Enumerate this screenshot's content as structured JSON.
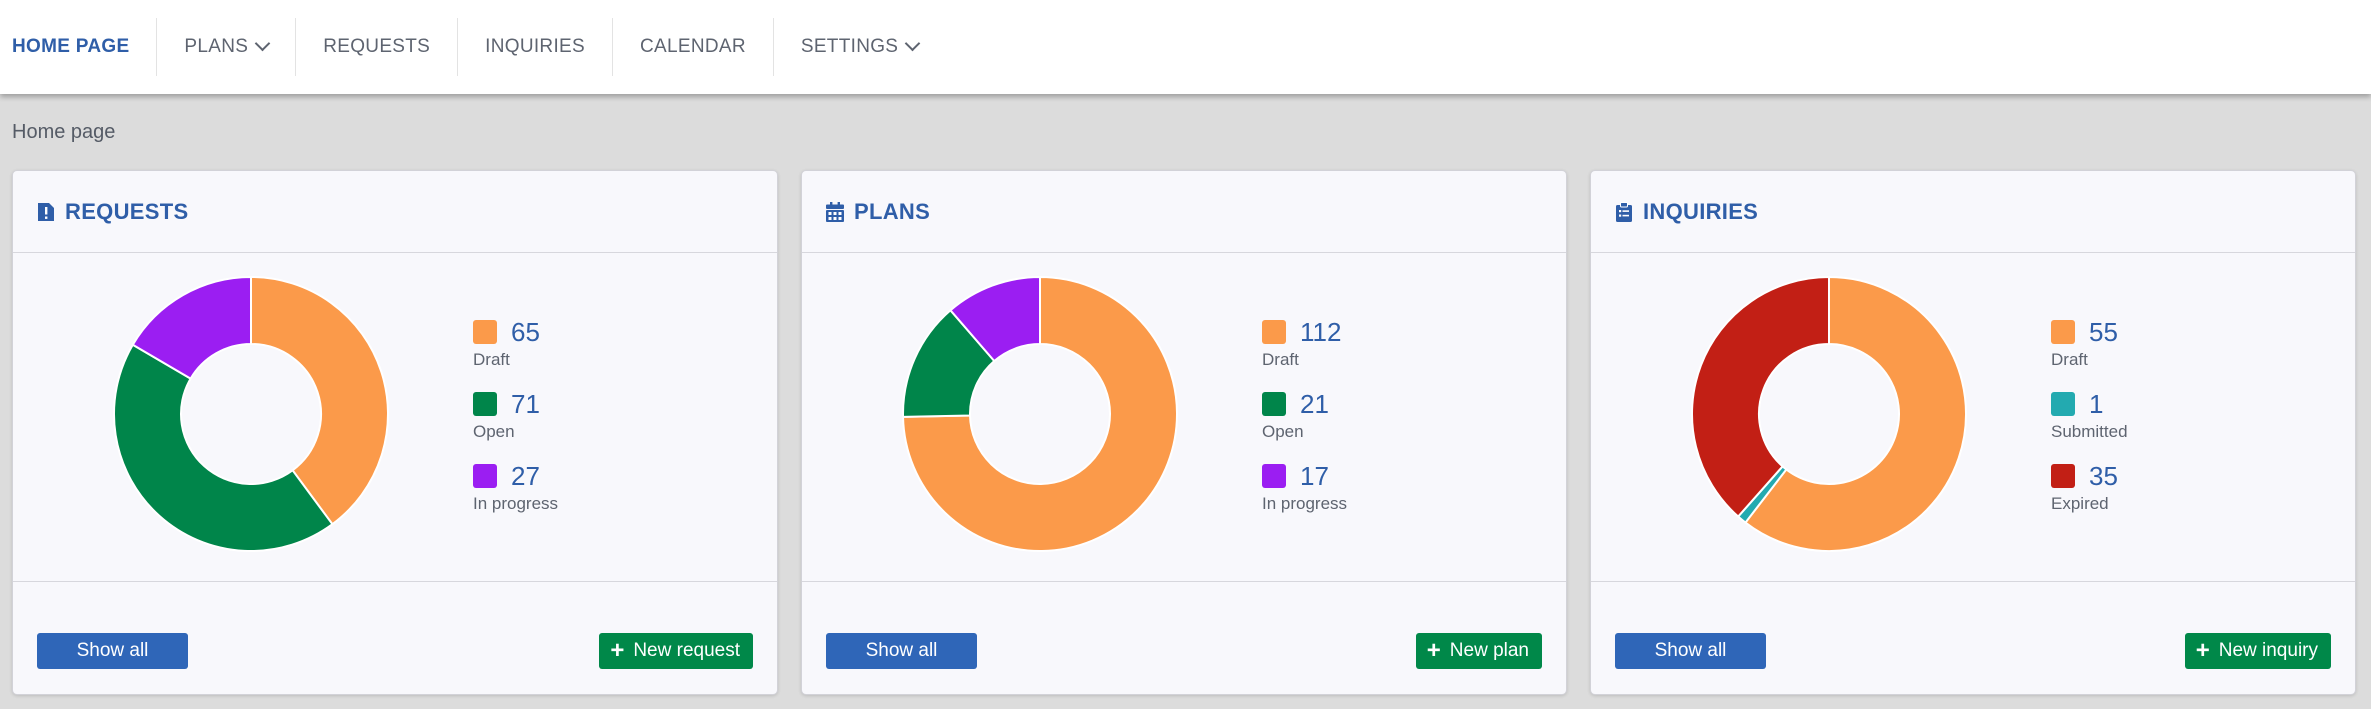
{
  "nav": {
    "items": [
      {
        "label": "HOME PAGE",
        "active": true,
        "dropdown": false
      },
      {
        "label": "PLANS",
        "active": false,
        "dropdown": true
      },
      {
        "label": "REQUESTS",
        "active": false,
        "dropdown": false
      },
      {
        "label": "INQUIRIES",
        "active": false,
        "dropdown": false
      },
      {
        "label": "CALENDAR",
        "active": false,
        "dropdown": false
      },
      {
        "label": "SETTINGS",
        "active": false,
        "dropdown": true
      }
    ]
  },
  "breadcrumb": "Home page",
  "colors": {
    "accent": "#2f5ea8",
    "draft": "#fb9a4a",
    "open": "#00854a",
    "in_progress": "#9b1ef2",
    "submitted": "#23aab0",
    "expired": "#c21f15",
    "show_all_button": "#2f66b8",
    "new_button": "#008849"
  },
  "panels": [
    {
      "title": "REQUESTS",
      "icon": "exclamation-document-icon",
      "show_all_label": "Show all",
      "new_label": "New request",
      "legend": [
        {
          "value": "65",
          "label": "Draft",
          "color": "#fb9a4a"
        },
        {
          "value": "71",
          "label": "Open",
          "color": "#00854a"
        },
        {
          "value": "27",
          "label": "In progress",
          "color": "#9b1ef2"
        }
      ]
    },
    {
      "title": "PLANS",
      "icon": "calendar-icon",
      "show_all_label": "Show all",
      "new_label": "New plan",
      "legend": [
        {
          "value": "112",
          "label": "Draft",
          "color": "#fb9a4a"
        },
        {
          "value": "21",
          "label": "Open",
          "color": "#00854a"
        },
        {
          "value": "17",
          "label": "In progress",
          "color": "#9b1ef2"
        }
      ]
    },
    {
      "title": "INQUIRIES",
      "icon": "clipboard-list-icon",
      "show_all_label": "Show all",
      "new_label": "New inquiry",
      "legend": [
        {
          "value": "55",
          "label": "Draft",
          "color": "#fb9a4a"
        },
        {
          "value": "1",
          "label": "Submitted",
          "color": "#23aab0"
        },
        {
          "value": "35",
          "label": "Expired",
          "color": "#c21f15"
        }
      ]
    }
  ],
  "chart_data": [
    {
      "type": "pie",
      "categories": [
        "Draft",
        "Open",
        "In progress"
      ],
      "values": [
        65,
        71,
        27
      ],
      "colors": [
        "#fb9a4a",
        "#00854a",
        "#9b1ef2"
      ]
    },
    {
      "type": "pie",
      "categories": [
        "Draft",
        "Open",
        "In progress"
      ],
      "values": [
        112,
        21,
        17
      ],
      "colors": [
        "#fb9a4a",
        "#00854a",
        "#9b1ef2"
      ]
    },
    {
      "type": "pie",
      "categories": [
        "Draft",
        "Submitted",
        "Expired"
      ],
      "values": [
        55,
        1,
        35
      ],
      "colors": [
        "#fb9a4a",
        "#23aab0",
        "#c21f15"
      ]
    }
  ]
}
